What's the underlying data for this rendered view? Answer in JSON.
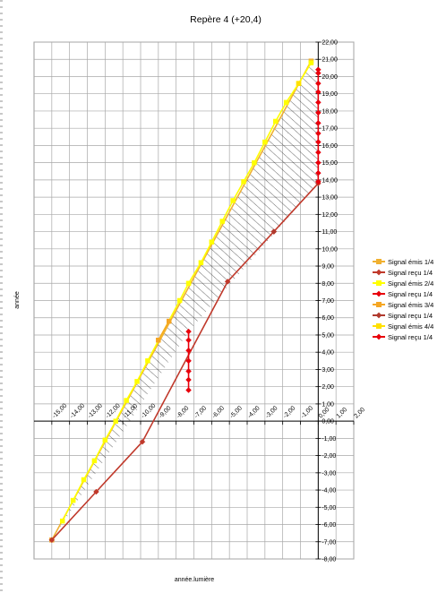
{
  "chart_data": {
    "type": "line",
    "title": "Repère 4 (+20,4)",
    "xlabel": "année.lumière",
    "ylabel": "année",
    "xlim": [
      -16,
      2
    ],
    "ylim": [
      -8,
      22
    ],
    "x_ticks": [
      -15,
      -14,
      -13,
      -12,
      -11,
      -10,
      -9,
      -8,
      -7,
      -6,
      -5,
      -4,
      -3,
      -2,
      -1,
      0,
      1,
      2
    ],
    "x_tick_labels": [
      "-15,00",
      "-14,00",
      "-13,00",
      "-12,00",
      "-11,00",
      "-10,00",
      "-9,00",
      "-8,00",
      "-7,00",
      "-6,00",
      "-5,00",
      "-4,00",
      "-3,00",
      "-2,00",
      "-1,00",
      "0,00",
      "1,00",
      "2,00"
    ],
    "y_ticks": [
      -8,
      -7,
      -6,
      -5,
      -4,
      -3,
      -2,
      -1,
      0,
      1,
      2,
      3,
      4,
      5,
      6,
      7,
      8,
      9,
      10,
      11,
      12,
      13,
      14,
      15,
      16,
      17,
      18,
      19,
      20,
      21,
      22
    ],
    "y_tick_labels": [
      "-8,00",
      "-7,00",
      "-6,00",
      "-5,00",
      "-4,00",
      "-3,00",
      "-2,00",
      "-1,00",
      "0,00",
      "1,00",
      "2,00",
      "3,00",
      "4,00",
      "5,00",
      "6,00",
      "7,00",
      "8,00",
      "9,00",
      "10,00",
      "11,00",
      "12,00",
      "13,00",
      "14,00",
      "15,00",
      "16,00",
      "17,00",
      "18,00",
      "19,00",
      "20,00",
      "21,00",
      "22,00"
    ],
    "grid": true,
    "legend_position": "right",
    "series": [
      {
        "name": "Signal émis 1/4",
        "color": "#f0b030",
        "marker": "square",
        "points": [
          [
            -15.0,
            -6.9
          ],
          [
            -0.4,
            20.9
          ]
        ]
      },
      {
        "name": "Signal reçu 1/4",
        "color": "#c0392b",
        "marker": "diamond",
        "points": [
          [
            -15.0,
            -6.9
          ],
          [
            -12.5,
            -4.1
          ],
          [
            -9.9,
            -1.2
          ],
          [
            -5.1,
            8.1
          ],
          [
            -2.5,
            11.0
          ],
          [
            0.0,
            13.8
          ]
        ]
      },
      {
        "name": "Signal émis 2/4",
        "color": "#ffff00",
        "marker": "square",
        "points": [
          [
            -14.4,
            -5.8
          ],
          [
            -13.8,
            -4.6
          ],
          [
            -13.2,
            -3.4
          ],
          [
            -12.6,
            -2.3
          ],
          [
            -12.0,
            -1.1
          ],
          [
            -11.4,
            0.0
          ],
          [
            -10.8,
            1.2
          ],
          [
            -10.2,
            2.3
          ],
          [
            -9.6,
            3.5
          ],
          [
            -7.8,
            7.0
          ],
          [
            -7.3,
            8.0
          ],
          [
            -6.6,
            9.2
          ],
          [
            -6.0,
            10.4
          ],
          [
            -5.4,
            11.6
          ],
          [
            -4.8,
            12.8
          ],
          [
            -4.2,
            13.9
          ],
          [
            -3.6,
            15.0
          ],
          [
            -3.0,
            16.2
          ],
          [
            -2.4,
            17.4
          ],
          [
            -1.8,
            18.5
          ],
          [
            -1.1,
            19.6
          ],
          [
            -0.4,
            20.8
          ]
        ]
      },
      {
        "name": "Signal reçu 1/4",
        "color": "#e8000b",
        "marker": "diamond",
        "points": [
          [
            -7.3,
            5.2
          ],
          [
            -7.3,
            4.7
          ],
          [
            -7.3,
            4.1
          ],
          [
            -7.3,
            3.5
          ],
          [
            -7.3,
            2.9
          ],
          [
            -7.3,
            2.4
          ],
          [
            -7.3,
            1.8
          ]
        ]
      },
      {
        "name": "Signal émis 3/4",
        "color": "#f5a623",
        "marker": "square",
        "points": [
          [
            -9.0,
            4.7
          ],
          [
            -8.4,
            5.8
          ]
        ]
      },
      {
        "name": "Signal reçu 1/4",
        "color": "#b03a2e",
        "marker": "diamond",
        "points": [
          [
            -2.5,
            11.0
          ]
        ]
      },
      {
        "name": "Signal émis 4/4",
        "color": "#ffe000",
        "marker": "square",
        "points": [
          [
            -1.1,
            19.6
          ]
        ]
      },
      {
        "name": "Signal reçu 1/4",
        "color": "#e8000b",
        "marker": "diamond",
        "points": [
          [
            0.0,
            13.9
          ],
          [
            0.0,
            14.4
          ],
          [
            0.0,
            15.0
          ],
          [
            0.0,
            15.6
          ],
          [
            0.0,
            16.2
          ],
          [
            0.0,
            16.7
          ],
          [
            0.0,
            17.3
          ],
          [
            0.0,
            17.9
          ],
          [
            0.0,
            18.5
          ],
          [
            0.0,
            19.1
          ],
          [
            0.0,
            19.6
          ],
          [
            0.0,
            20.2
          ],
          [
            0.0,
            20.4
          ]
        ]
      }
    ],
    "shaded_region": [
      [
        -15.0,
        -6.9
      ],
      [
        -0.4,
        20.9
      ],
      [
        0.0,
        20.4
      ],
      [
        0.0,
        13.8
      ],
      [
        -7.3,
        5.2
      ],
      [
        -15.0,
        -6.9
      ]
    ],
    "shaded_style": "hatched"
  }
}
